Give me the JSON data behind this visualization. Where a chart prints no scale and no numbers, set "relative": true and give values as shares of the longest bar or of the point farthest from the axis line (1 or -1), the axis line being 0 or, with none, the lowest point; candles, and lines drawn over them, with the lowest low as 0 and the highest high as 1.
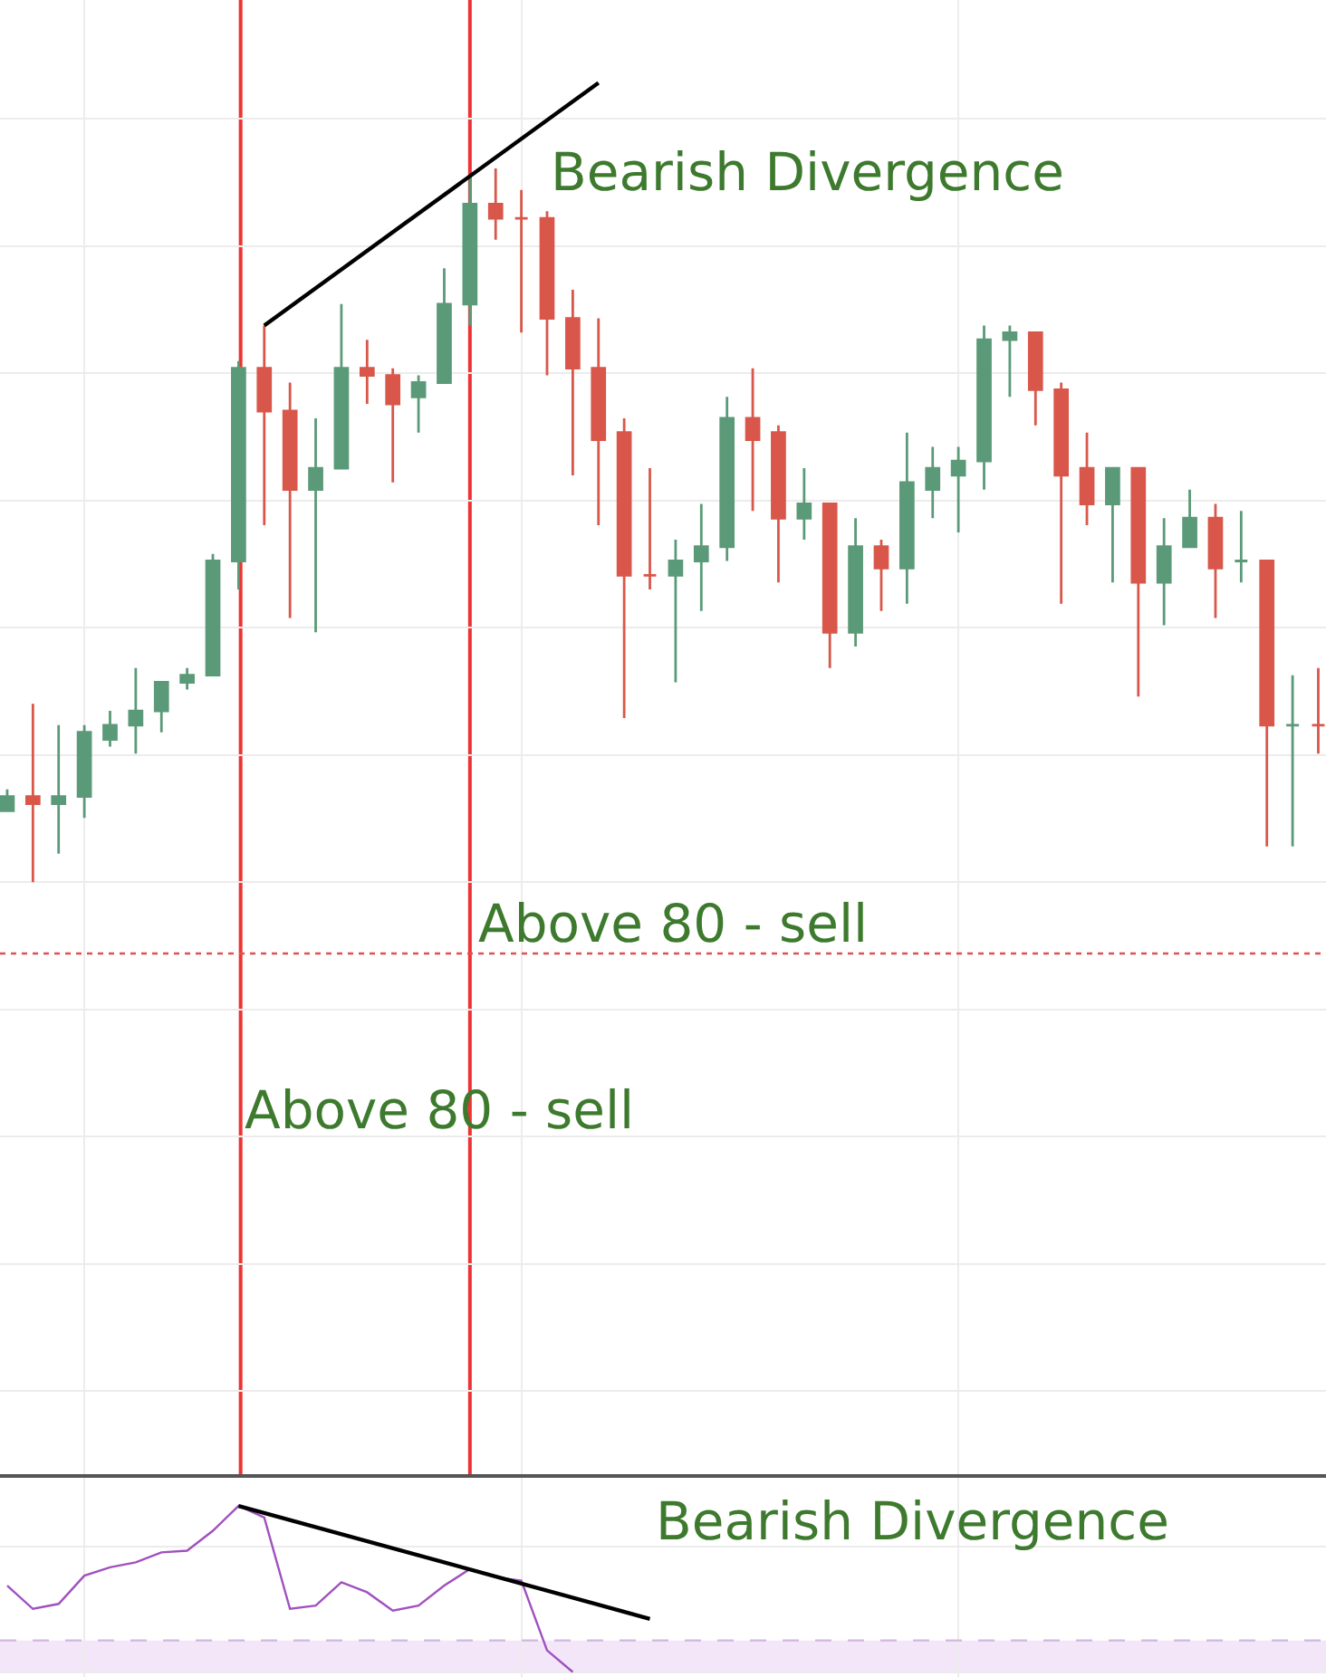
{
  "chart_data": [
    {
      "type": "candlestick",
      "relative": true,
      "grid": true,
      "categories": [
        null,
        null,
        null,
        null,
        null,
        null,
        null,
        null,
        null,
        null,
        null,
        null,
        null,
        null,
        null,
        null,
        null,
        null,
        null,
        null,
        null,
        null,
        null,
        null,
        null,
        null,
        null,
        null,
        null,
        null,
        null,
        null,
        null,
        null,
        null,
        null,
        null,
        null,
        null,
        null,
        null,
        null,
        null,
        null,
        null,
        null,
        null,
        null,
        null,
        null,
        null,
        null
      ],
      "ohlc": [
        [
          0.1,
          0.13,
          0.1,
          0.12
        ],
        [
          0.12,
          0.25,
          0,
          0.11
        ],
        [
          0.11,
          0.22,
          0.04,
          0.12
        ],
        [
          0.12,
          0.22,
          0.09,
          0.21
        ],
        [
          0.2,
          0.24,
          0.19,
          0.22
        ],
        [
          0.22,
          0.3,
          0.18,
          0.24
        ],
        [
          0.24,
          0.28,
          0.21,
          0.28
        ],
        [
          0.28,
          0.3,
          0.27,
          0.29
        ],
        [
          0.29,
          0.46,
          0.29,
          0.45
        ],
        [
          0.45,
          0.73,
          0.41,
          0.72
        ],
        [
          0.72,
          0.78,
          0.5,
          0.66
        ],
        [
          0.66,
          0.7,
          0.37,
          0.55
        ],
        [
          0.55,
          0.65,
          0.35,
          0.58
        ],
        [
          0.58,
          0.81,
          0.58,
          0.72
        ],
        [
          0.72,
          0.76,
          0.67,
          0.71
        ],
        [
          0.71,
          0.72,
          0.56,
          0.67
        ],
        [
          0.68,
          0.71,
          0.63,
          0.7
        ],
        [
          0.7,
          0.86,
          0.7,
          0.81
        ],
        [
          0.81,
          0.99,
          0.78,
          0.95
        ],
        [
          0.95,
          1,
          0.9,
          0.93
        ],
        [
          0.93,
          0.97,
          0.77,
          0.93
        ],
        [
          0.93,
          0.94,
          0.71,
          0.79
        ],
        [
          0.79,
          0.83,
          0.57,
          0.72
        ],
        [
          0.72,
          0.79,
          0.5,
          0.62
        ],
        [
          0.63,
          0.65,
          0.23,
          0.43
        ],
        [
          0.43,
          0.58,
          0.41,
          0.43
        ],
        [
          0.43,
          0.48,
          0.28,
          0.45
        ],
        [
          0.45,
          0.53,
          0.38,
          0.47
        ],
        [
          0.47,
          0.68,
          0.45,
          0.65
        ],
        [
          0.65,
          0.72,
          0.52,
          0.62
        ],
        [
          0.63,
          0.64,
          0.42,
          0.51
        ],
        [
          0.51,
          0.58,
          0.48,
          0.53
        ],
        [
          0.53,
          0.53,
          0.3,
          0.35
        ],
        [
          0.35,
          0.51,
          0.33,
          0.47
        ],
        [
          0.47,
          0.48,
          0.38,
          0.44
        ],
        [
          0.44,
          0.63,
          0.39,
          0.56
        ],
        [
          0.55,
          0.61,
          0.51,
          0.58
        ],
        [
          0.57,
          0.61,
          0.49,
          0.59
        ],
        [
          0.59,
          0.78,
          0.55,
          0.76
        ],
        [
          0.76,
          0.78,
          0.68,
          0.77
        ],
        [
          0.77,
          0.77,
          0.64,
          0.69
        ],
        [
          0.69,
          0.7,
          0.39,
          0.57
        ],
        [
          0.58,
          0.63,
          0.5,
          0.53
        ],
        [
          0.53,
          0.58,
          0.42,
          0.58
        ],
        [
          0.58,
          0.58,
          0.26,
          0.42
        ],
        [
          0.42,
          0.51,
          0.36,
          0.47
        ],
        [
          0.47,
          0.55,
          0.47,
          0.51
        ],
        [
          0.51,
          0.53,
          0.37,
          0.44
        ],
        [
          0.45,
          0.52,
          0.42,
          0.45
        ],
        [
          0.45,
          0.45,
          0.05,
          0.22
        ],
        [
          0.22,
          0.29,
          0.05,
          0.22
        ],
        [
          0.22,
          0.3,
          0.18,
          0.22
        ]
      ],
      "colors": [
        "#5b9a78",
        "#d9574a",
        "#5b9a78",
        "#5b9a78",
        "#5b9a78",
        "#5b9a78",
        "#5b9a78",
        "#5b9a78",
        "#5b9a78",
        "#5b9a78",
        "#d9574a",
        "#d9574a",
        "#5b9a78",
        "#5b9a78",
        "#d9574a",
        "#d9574a",
        "#5b9a78",
        "#5b9a78",
        "#5b9a78",
        "#d9574a",
        "#d9574a",
        "#d9574a",
        "#d9574a",
        "#d9574a",
        "#d9574a",
        "#d9574a",
        "#5b9a78",
        "#5b9a78",
        "#5b9a78",
        "#d9574a",
        "#d9574a",
        "#5b9a78",
        "#d9574a",
        "#5b9a78",
        "#d9574a",
        "#5b9a78",
        "#5b9a78",
        "#5b9a78",
        "#5b9a78",
        "#5b9a78",
        "#d9574a",
        "#d9574a",
        "#d9574a",
        "#5b9a78",
        "#d9574a",
        "#5b9a78",
        "#5b9a78",
        "#d9574a",
        "#5b9a78",
        "#d9574a",
        "#5b9a78",
        "#d9574a"
      ],
      "series": [
        {
          "type": "line",
          "values": [
            null,
            null,
            null,
            null,
            null,
            null,
            null,
            null,
            null,
            null,
            0.78,
            null,
            null,
            null,
            null,
            null,
            null,
            null,
            null,
            null,
            null,
            null,
            null,
            1.12,
            null,
            null,
            null,
            null,
            null,
            null,
            null,
            null,
            null,
            null,
            null,
            null,
            null,
            null,
            null,
            null,
            null,
            null,
            null,
            null,
            null,
            null,
            null,
            null,
            null,
            null,
            null,
            null
          ],
          "color": "#000000"
        }
      ],
      "ref_lines": [
        {
          "axis": "y",
          "value": -0.1,
          "label": "Above 80 - sell",
          "color": "#e05050",
          "line_style": "dotted"
        }
      ],
      "annotations": [
        "Bearish Divergence",
        "Above 80 - sell"
      ]
    },
    {
      "type": "line",
      "relative": true,
      "grid": true,
      "categories": [
        null,
        null,
        null,
        null,
        null,
        null,
        null,
        null,
        null,
        null,
        null,
        null,
        null,
        null,
        null,
        null,
        null,
        null,
        null,
        null,
        null,
        null,
        null,
        null,
        null,
        null,
        null,
        null,
        null,
        null,
        null,
        null,
        null,
        null,
        null,
        null,
        null,
        null,
        null,
        null,
        null,
        null,
        null,
        null,
        null,
        null,
        null,
        null,
        null,
        null,
        null,
        null
      ],
      "series": [
        {
          "color": "#a050c0",
          "values": [
            0.52,
            0.38,
            0.41,
            0.58,
            0.63,
            0.66,
            0.72,
            0.73,
            0.85,
            1,
            0.93,
            0.38,
            0.4,
            0.54,
            0.48,
            0.37,
            0.4,
            0.52,
            0.62,
            0.57,
            0.55,
            0.13,
            0,
            null,
            null,
            null,
            null,
            null,
            null,
            null,
            null,
            null,
            null,
            null,
            null,
            null,
            null,
            null,
            null,
            null,
            null,
            null,
            null,
            null,
            null,
            null,
            null,
            null,
            null,
            null,
            null,
            null
          ]
        },
        {
          "type": "line",
          "values": [
            null,
            null,
            null,
            null,
            null,
            null,
            null,
            null,
            null,
            1,
            null,
            null,
            null,
            null,
            null,
            null,
            null,
            null,
            null,
            null,
            null,
            null,
            null,
            null,
            null,
            0.32,
            null,
            null,
            null,
            null,
            null,
            null,
            null,
            null,
            null,
            null,
            null,
            null,
            null,
            null,
            null,
            null,
            null,
            null,
            null,
            null,
            null,
            null,
            null,
            null,
            null,
            null
          ],
          "color": "#000000"
        }
      ],
      "bands": [
        {
          "axis": "y",
          "from": 0,
          "to": 0.19,
          "color": "#f3e6f8"
        }
      ],
      "ref_lines": [
        {
          "axis": "y",
          "value": 0.19,
          "color": "#d0b8dc",
          "line_style": "dashed"
        }
      ],
      "annotations": [
        "Bearish Divergence"
      ]
    }
  ]
}
